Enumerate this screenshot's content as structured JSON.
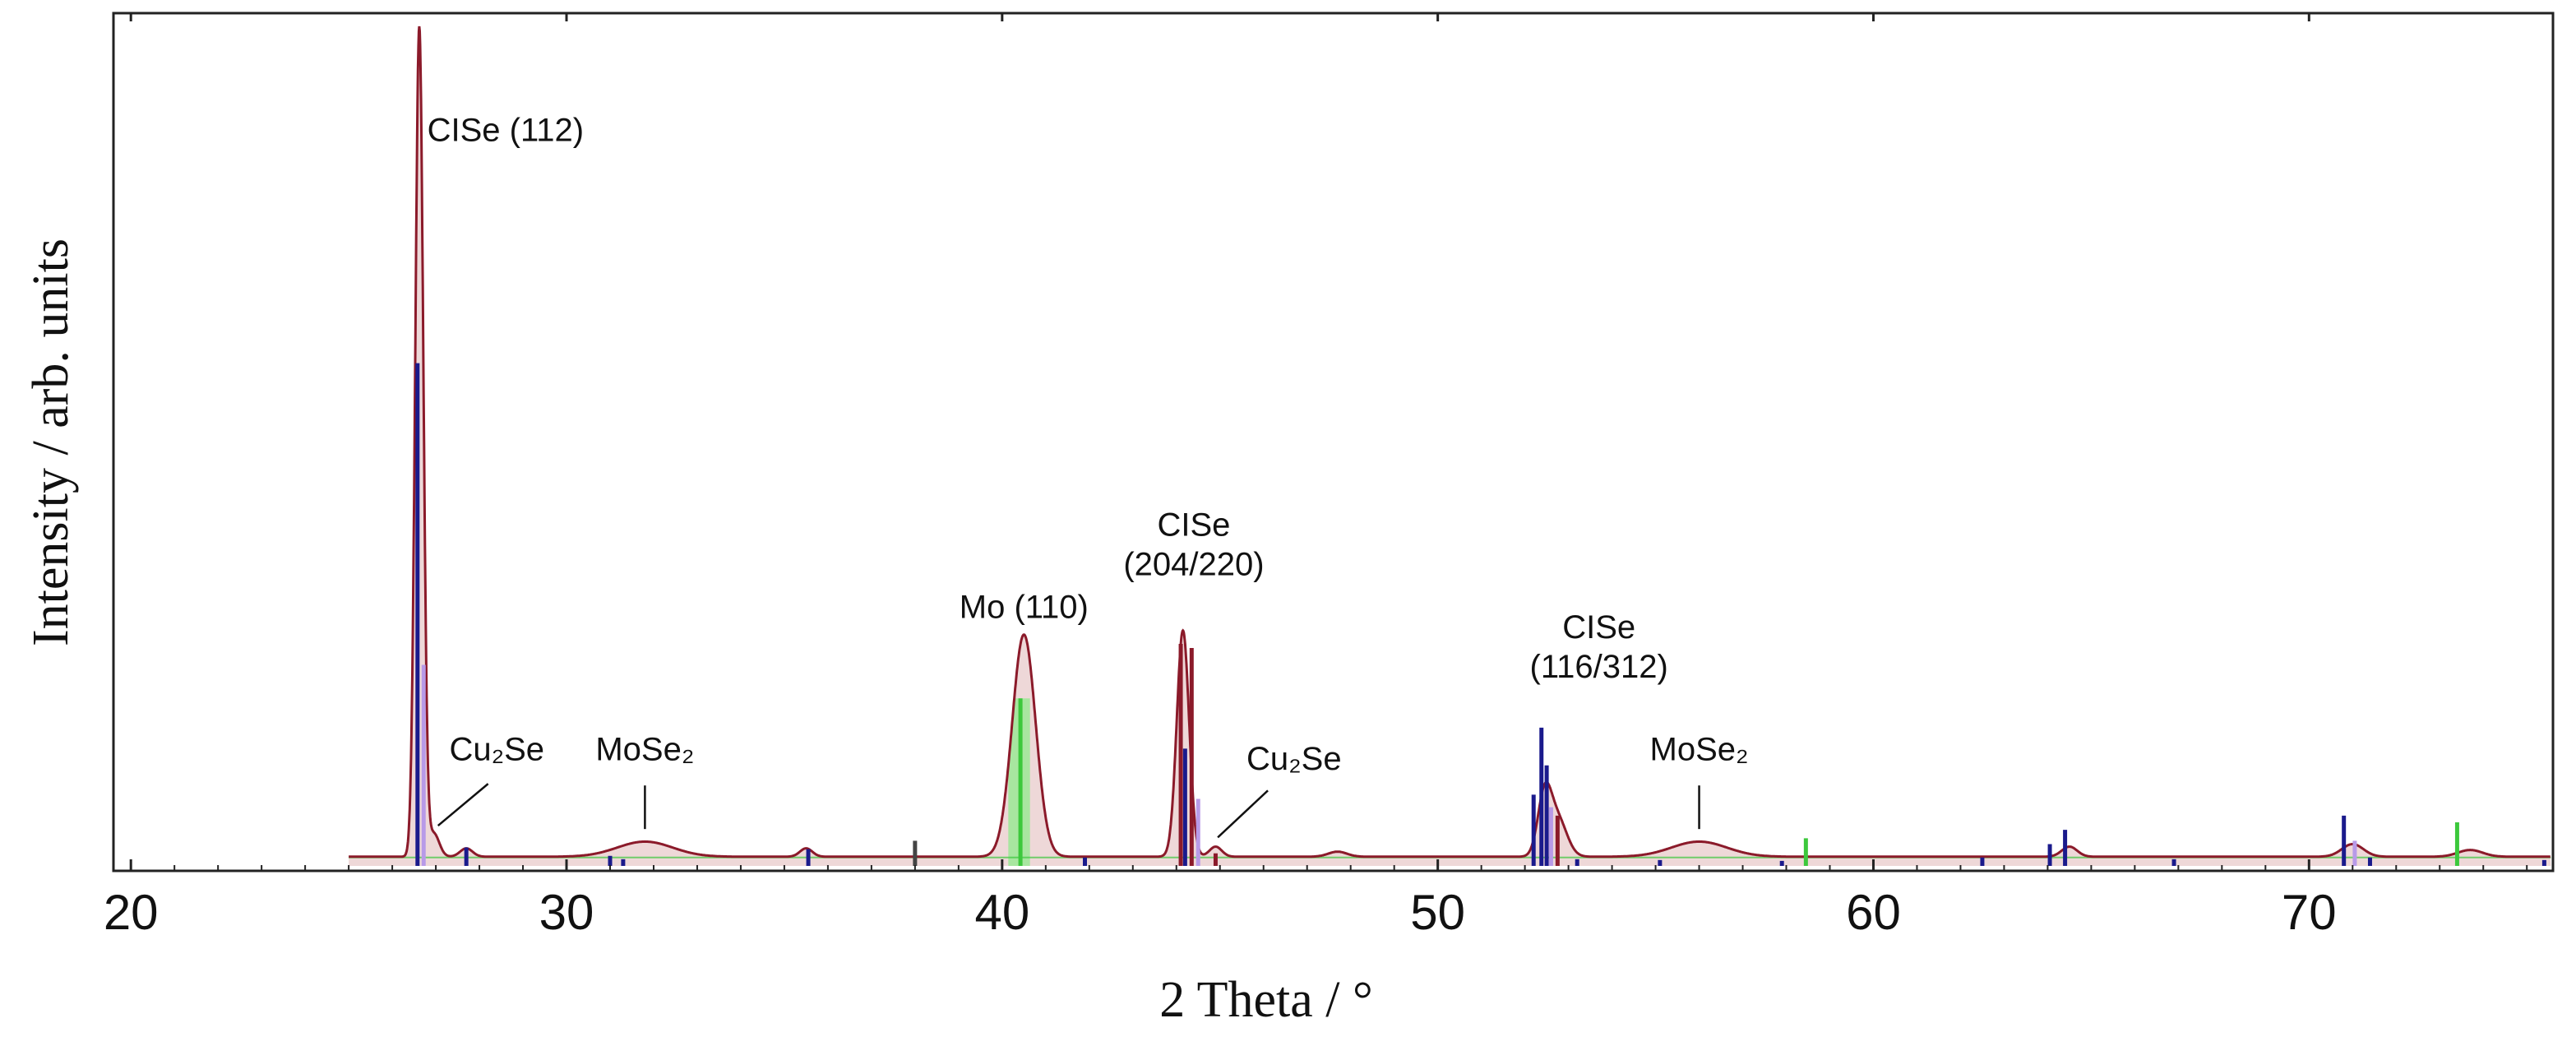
{
  "chart_data": {
    "type": "line",
    "title": "",
    "xlabel": "2 Theta / °",
    "ylabel": "Intensity / arb. units",
    "xlim": [
      19.6,
      75.6
    ],
    "ylim": [
      0,
      100
    ],
    "x_ticks": [
      "20",
      "30",
      "40",
      "50",
      "60",
      "70"
    ],
    "grid": false,
    "colors": {
      "measured": "#8b1a2a",
      "fill": "#d9a9a9",
      "cise": "#1a1a8c",
      "cise_light": "#b89ae8",
      "mo": "#3cc83c",
      "mo_light": "#a8e6a0",
      "other": "#444444"
    },
    "measured_pattern": {
      "name": "",
      "baseline": 1.1,
      "peaks": [
        {
          "pos": 26.62,
          "height": 99.0,
          "width": 0.13
        },
        {
          "pos": 26.95,
          "height": 2.8,
          "width": 0.18
        },
        {
          "pos": 27.7,
          "height": 1.0,
          "width": 0.2
        },
        {
          "pos": 31.8,
          "height": 1.8,
          "width": 0.9
        },
        {
          "pos": 35.5,
          "height": 1.0,
          "width": 0.2
        },
        {
          "pos": 40.5,
          "height": 26.5,
          "width": 0.38
        },
        {
          "pos": 44.15,
          "height": 27.0,
          "width": 0.2
        },
        {
          "pos": 44.9,
          "height": 1.2,
          "width": 0.2
        },
        {
          "pos": 47.7,
          "height": 0.6,
          "width": 0.3
        },
        {
          "pos": 52.45,
          "height": 7.0,
          "width": 0.22
        },
        {
          "pos": 52.75,
          "height": 4.5,
          "width": 0.3
        },
        {
          "pos": 56.0,
          "height": 1.8,
          "width": 0.9
        },
        {
          "pos": 64.5,
          "height": 1.2,
          "width": 0.25
        },
        {
          "pos": 71.0,
          "height": 1.5,
          "width": 0.35
        },
        {
          "pos": 73.7,
          "height": 0.8,
          "width": 0.4
        }
      ]
    },
    "reference_lines": [
      {
        "pos": 26.58,
        "height": 60.0,
        "color": "cise"
      },
      {
        "pos": 26.72,
        "height": 24.0,
        "color": "cise_light"
      },
      {
        "pos": 27.7,
        "height": 2.2,
        "color": "cise"
      },
      {
        "pos": 31.0,
        "height": 1.2,
        "color": "cise"
      },
      {
        "pos": 31.3,
        "height": 0.8,
        "color": "cise"
      },
      {
        "pos": 35.55,
        "height": 2.0,
        "color": "cise"
      },
      {
        "pos": 38.0,
        "height": 3.0,
        "color": "other"
      },
      {
        "pos": 40.42,
        "height": 20.0,
        "color": "mo"
      },
      {
        "pos": 41.9,
        "height": 1.0,
        "color": "cise"
      },
      {
        "pos": 44.1,
        "height": 26.5,
        "color": "measured"
      },
      {
        "pos": 44.2,
        "height": 14.0,
        "color": "cise"
      },
      {
        "pos": 44.35,
        "height": 26.0,
        "color": "measured"
      },
      {
        "pos": 44.5,
        "height": 8.0,
        "color": "cise_light"
      },
      {
        "pos": 44.9,
        "height": 1.5,
        "color": "measured"
      },
      {
        "pos": 52.2,
        "height": 8.5,
        "color": "cise"
      },
      {
        "pos": 52.38,
        "height": 16.5,
        "color": "cise"
      },
      {
        "pos": 52.5,
        "height": 12.0,
        "color": "cise"
      },
      {
        "pos": 52.6,
        "height": 7.0,
        "color": "cise_light"
      },
      {
        "pos": 52.75,
        "height": 6.0,
        "color": "measured"
      },
      {
        "pos": 53.2,
        "height": 0.8,
        "color": "cise"
      },
      {
        "pos": 55.1,
        "height": 0.7,
        "color": "cise"
      },
      {
        "pos": 57.9,
        "height": 0.6,
        "color": "cise"
      },
      {
        "pos": 58.45,
        "height": 3.3,
        "color": "mo"
      },
      {
        "pos": 62.5,
        "height": 1.0,
        "color": "cise"
      },
      {
        "pos": 64.05,
        "height": 2.6,
        "color": "cise"
      },
      {
        "pos": 64.4,
        "height": 4.3,
        "color": "cise"
      },
      {
        "pos": 66.9,
        "height": 0.8,
        "color": "cise"
      },
      {
        "pos": 70.8,
        "height": 6.0,
        "color": "cise"
      },
      {
        "pos": 71.05,
        "height": 3.0,
        "color": "cise_light"
      },
      {
        "pos": 71.4,
        "height": 1.0,
        "color": "cise"
      },
      {
        "pos": 73.4,
        "height": 5.2,
        "color": "mo"
      },
      {
        "pos": 75.4,
        "height": 0.7,
        "color": "cise"
      }
    ],
    "annotations": [
      {
        "lines": [
          "CISe (112)"
        ],
        "x": 28.6,
        "y": 86.5,
        "anchor": "middle"
      },
      {
        "lines": [
          "Cu₂Se"
        ],
        "x": 28.4,
        "y": 12.6,
        "anchor": "middle",
        "leader_from": [
          28.2,
          9.8
        ],
        "leader_to": [
          27.05,
          4.8
        ]
      },
      {
        "lines": [
          "MoSe₂"
        ],
        "x": 31.8,
        "y": 12.6,
        "anchor": "middle",
        "leader_from": [
          31.8,
          9.6
        ],
        "leader_to": [
          31.8,
          4.4
        ]
      },
      {
        "lines": [
          "Mo (110)"
        ],
        "x": 40.5,
        "y": 29.6,
        "anchor": "middle"
      },
      {
        "lines": [
          "CISe",
          "(204/220)"
        ],
        "x": 44.4,
        "y": 39.4,
        "anchor": "middle"
      },
      {
        "lines": [
          "Cu₂Se"
        ],
        "x": 46.7,
        "y": 11.5,
        "anchor": "middle",
        "leader_from": [
          46.1,
          9.0
        ],
        "leader_to": [
          44.95,
          3.4
        ]
      },
      {
        "lines": [
          "CISe",
          "(116/312)"
        ],
        "x": 53.7,
        "y": 27.2,
        "anchor": "middle"
      },
      {
        "lines": [
          "MoSe₂"
        ],
        "x": 56.0,
        "y": 12.6,
        "anchor": "middle",
        "leader_from": [
          56.0,
          9.6
        ],
        "leader_to": [
          56.0,
          4.4
        ]
      }
    ]
  }
}
